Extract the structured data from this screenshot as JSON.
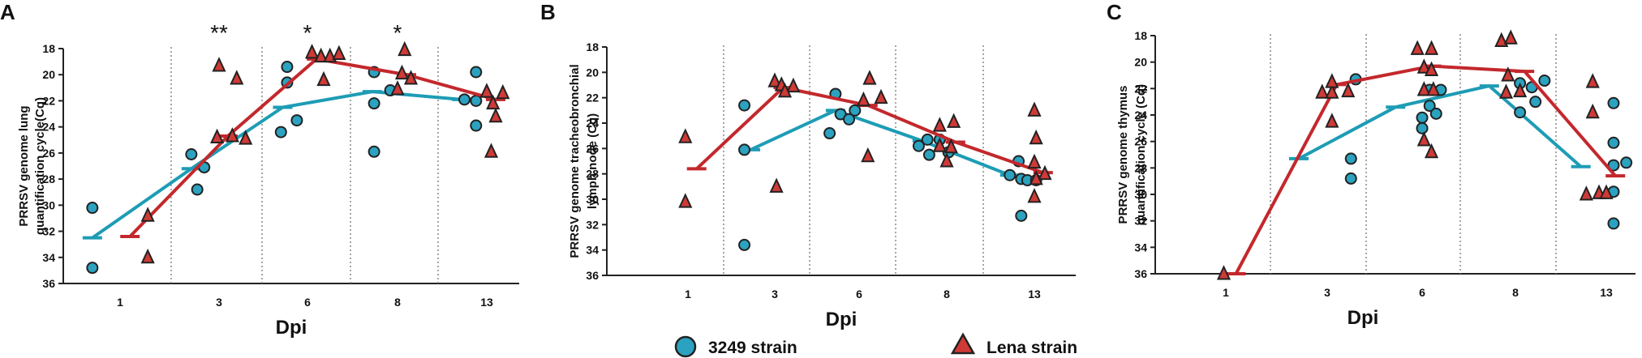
{
  "colors": {
    "strain_3249": "#1e9cb5",
    "strain_lena": "#c3282c",
    "marker_3249": "#2ba2c0",
    "marker_lena": "#cf3a36"
  },
  "legend": [
    {
      "label": "3249 strain",
      "marker": "circle"
    },
    {
      "label": "Lena strain",
      "marker": "triangle"
    }
  ],
  "chart_data": [
    {
      "panel": "A",
      "type": "scatter",
      "ylabel": "PRRSV genome lung quantification cycle(Cq)",
      "xlabel": "Dpi",
      "categories": [
        "1",
        "3",
        "6",
        "8",
        "13"
      ],
      "ylim": [
        36,
        18
      ],
      "yticks": [
        18,
        20,
        22,
        24,
        26,
        28,
        30,
        32,
        34,
        36
      ],
      "inverted_y": true,
      "grid": "dotted vertical separators between groups",
      "significance": [
        {
          "category": "3",
          "label": "**"
        },
        {
          "category": "6",
          "label": "*"
        },
        {
          "category": "8",
          "label": "*"
        }
      ],
      "series": [
        {
          "name": "3249 strain",
          "points": [
            [
              0.72,
              30.2
            ],
            [
              0.72,
              34.8
            ],
            [
              1.72,
              26.1
            ],
            [
              1.85,
              27.1
            ],
            [
              1.78,
              28.8
            ],
            [
              2.7,
              24.4
            ],
            [
              2.77,
              19.4
            ],
            [
              2.77,
              20.6
            ],
            [
              2.88,
              23.5
            ],
            [
              3.74,
              19.8
            ],
            [
              3.74,
              22.2
            ],
            [
              3.74,
              25.9
            ],
            [
              3.92,
              21.2
            ],
            [
              4.75,
              21.9
            ],
            [
              4.88,
              19.8
            ],
            [
              4.88,
              22.0
            ],
            [
              4.88,
              23.9
            ]
          ],
          "means": [
            32.5,
            27.2,
            22.5,
            21.3,
            21.9
          ]
        },
        {
          "name": "Lena strain",
          "points": [
            [
              1.28,
              30.8
            ],
            [
              1.28,
              34.0
            ],
            [
              2.0,
              19.3
            ],
            [
              2.2,
              20.3
            ],
            [
              1.98,
              24.8
            ],
            [
              2.15,
              24.7
            ],
            [
              2.3,
              24.9
            ],
            [
              3.05,
              18.3
            ],
            [
              3.15,
              18.6
            ],
            [
              3.25,
              18.6
            ],
            [
              3.35,
              18.4
            ],
            [
              3.18,
              20.4
            ],
            [
              4.08,
              18.1
            ],
            [
              4.05,
              19.9
            ],
            [
              4.15,
              20.3
            ],
            [
              4.0,
              21.1
            ],
            [
              5.0,
              21.3
            ],
            [
              5.18,
              21.4
            ],
            [
              5.07,
              22.2
            ],
            [
              5.1,
              23.2
            ],
            [
              5.05,
              25.9
            ]
          ],
          "means": [
            32.4,
            24.7,
            18.8,
            20.0,
            21.9
          ]
        }
      ]
    },
    {
      "panel": "B",
      "type": "scatter",
      "ylabel": "PRRSV genome tracheobronchial lymph node (Cq)",
      "xlabel": "Dpi",
      "categories": [
        "1",
        "3",
        "6",
        "8",
        "13"
      ],
      "ylim": [
        36,
        18
      ],
      "yticks": [
        18,
        20,
        22,
        24,
        26,
        28,
        30,
        32,
        34,
        36
      ],
      "inverted_y": true,
      "grid": "dotted vertical separators between groups",
      "series": [
        {
          "name": "3249 strain",
          "points": [
            [
              1.65,
              22.6
            ],
            [
              1.65,
              33.6
            ],
            [
              1.65,
              26.1
            ],
            [
              2.65,
              24.8
            ],
            [
              2.72,
              21.7
            ],
            [
              2.78,
              23.3
            ],
            [
              2.88,
              23.7
            ],
            [
              2.95,
              23.0
            ],
            [
              3.68,
              25.8
            ],
            [
              3.78,
              25.3
            ],
            [
              3.8,
              26.5
            ],
            [
              3.92,
              25.3
            ],
            [
              4.02,
              26.3
            ],
            [
              4.72,
              28.1
            ],
            [
              4.82,
              27.0
            ],
            [
              4.85,
              28.4
            ],
            [
              4.92,
              28.5
            ],
            [
              5.02,
              28.5
            ],
            [
              4.85,
              31.3
            ]
          ],
          "means": [
            26.1,
            23.0,
            25.4,
            28.1
          ]
        },
        {
          "name": "Lena strain",
          "points": [
            [
              0.97,
              25.1
            ],
            [
              0.97,
              30.2
            ],
            [
              2.0,
              20.7
            ],
            [
              2.08,
              21.0
            ],
            [
              2.22,
              21.1
            ],
            [
              2.12,
              21.5
            ],
            [
              2.02,
              29.0
            ],
            [
              3.05,
              22.2
            ],
            [
              3.25,
              22.0
            ],
            [
              3.12,
              20.5
            ],
            [
              3.1,
              26.6
            ],
            [
              3.92,
              24.2
            ],
            [
              4.08,
              23.9
            ],
            [
              3.92,
              25.8
            ],
            [
              4.05,
              25.9
            ],
            [
              4.0,
              27.0
            ],
            [
              5.0,
              23.0
            ],
            [
              5.02,
              25.2
            ],
            [
              5.0,
              27.1
            ],
            [
              5.12,
              28.0
            ],
            [
              5.02,
              28.4
            ],
            [
              5.0,
              29.8
            ]
          ],
          "means": [
            27.6,
            21.2,
            22.6,
            25.5,
            27.9
          ]
        }
      ]
    },
    {
      "panel": "C",
      "type": "scatter",
      "ylabel": "PRRSV genome thymus quantification cycle (Cq)",
      "xlabel": "Dpi",
      "categories": [
        "1",
        "3",
        "6",
        "8",
        "13"
      ],
      "ylim": [
        36,
        18
      ],
      "yticks": [
        18,
        20,
        22,
        24,
        26,
        28,
        30,
        32,
        34,
        36
      ],
      "inverted_y": true,
      "grid": "dotted vertical separators between groups",
      "series": [
        {
          "name": "3249 strain",
          "points": [
            [
              2.3,
              21.3
            ],
            [
              2.25,
              27.3
            ],
            [
              2.25,
              28.8
            ],
            [
              3.0,
              24.2
            ],
            [
              3.08,
              23.3
            ],
            [
              3.08,
              22.1
            ],
            [
              3.0,
              25.0
            ],
            [
              3.2,
              22.1
            ],
            [
              3.15,
              23.9
            ],
            [
              4.05,
              21.6
            ],
            [
              4.05,
              23.8
            ],
            [
              4.18,
              21.9
            ],
            [
              4.22,
              23.0
            ],
            [
              4.32,
              21.4
            ],
            [
              5.08,
              23.1
            ],
            [
              5.08,
              26.1
            ],
            [
              5.08,
              27.8
            ],
            [
              5.08,
              29.8
            ],
            [
              5.08,
              32.2
            ],
            [
              5.22,
              27.6
            ]
          ],
          "means": [
            27.3,
            23.4,
            21.8,
            27.9
          ]
        },
        {
          "name": "Lena strain",
          "points": [
            [
              0.98,
              36.0
            ],
            [
              1.95,
              22.3
            ],
            [
              2.05,
              22.3
            ],
            [
              2.05,
              21.5
            ],
            [
              2.05,
              24.5
            ],
            [
              2.22,
              22.2
            ],
            [
              2.95,
              19.0
            ],
            [
              3.02,
              20.4
            ],
            [
              3.02,
              22.1
            ],
            [
              3.1,
              19.0
            ],
            [
              3.1,
              20.6
            ],
            [
              3.12,
              22.1
            ],
            [
              3.02,
              25.9
            ],
            [
              3.1,
              26.8
            ],
            [
              3.85,
              18.4
            ],
            [
              3.92,
              21.0
            ],
            [
              3.95,
              18.2
            ],
            [
              3.9,
              22.3
            ],
            [
              4.05,
              22.2
            ],
            [
              4.85,
              21.5
            ],
            [
              4.85,
              23.8
            ],
            [
              4.92,
              29.9
            ],
            [
              4.78,
              30.0
            ],
            [
              5.0,
              29.9
            ]
          ],
          "means": [
            36.0,
            21.7,
            20.3,
            20.7,
            28.6
          ]
        }
      ]
    }
  ]
}
